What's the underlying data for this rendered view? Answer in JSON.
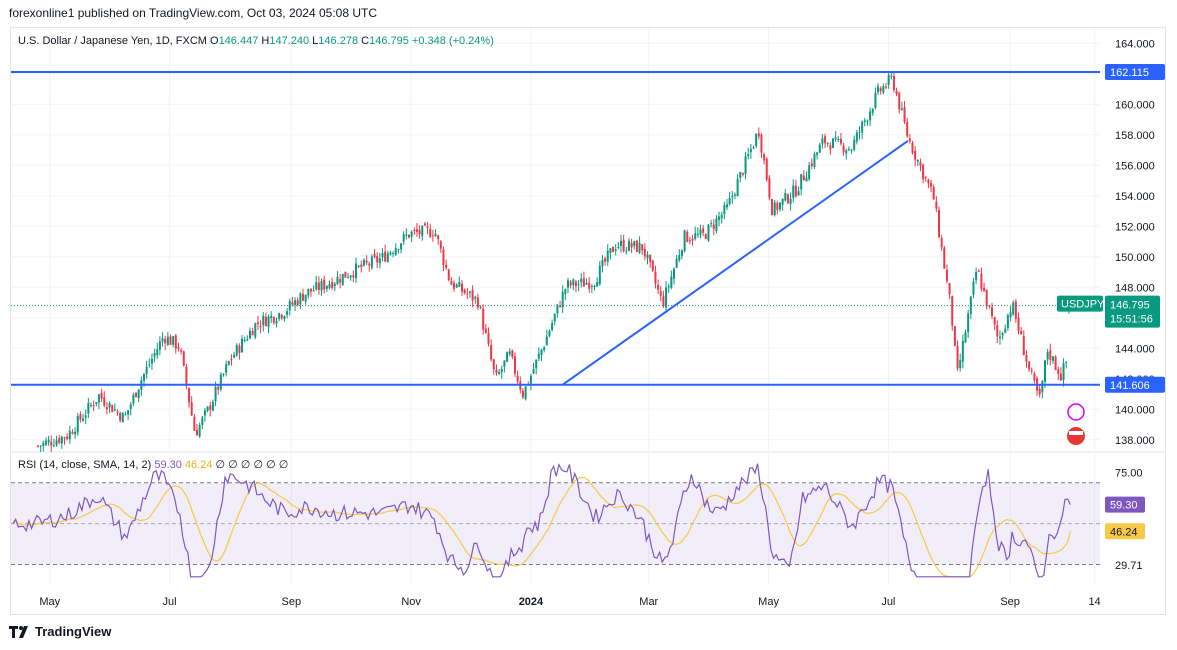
{
  "header": {
    "published": "forexonline1 published on TradingView.com, Oct 03, 2024 05:08 UTC"
  },
  "legend": {
    "symbol": "U.S. Dollar / Japanese Yen, 1D, FXCM",
    "o_label": "O",
    "o_value": "146.447",
    "h_label": "H",
    "h_value": "147.240",
    "l_label": "L",
    "l_value": "146.278",
    "c_label": "C",
    "c_value": "146.795",
    "change": "+0.348 (+0.24%)"
  },
  "rsi_legend": {
    "label": "RSI (14, close, SMA, 14, 2)",
    "rsi_value": "59.30",
    "sma_value": "46.24",
    "empty_marks": "∅ ∅ ∅ ∅ ∅ ∅"
  },
  "price_tag": {
    "symbol": "USDJPY",
    "price": "146.795",
    "countdown": "15:51:56"
  },
  "levels": {
    "resistance": "162.115",
    "support": "141.606"
  },
  "rsi_tags": {
    "rsi": "59.30",
    "sma": "46.24"
  },
  "footer": {
    "brand": "TradingView"
  },
  "colors": {
    "up": "#089981",
    "down": "#f23645",
    "level_line": "#2962ff",
    "rsi_line": "#7e57c2",
    "rsi_sma": "#f7c948"
  },
  "chart_data": [
    {
      "type": "candlestick",
      "title": "U.S. Dollar / Japanese Yen, 1D, FXCM",
      "x_tick_labels": [
        "May",
        "Jul",
        "Sep",
        "Nov",
        "2024",
        "Mar",
        "May",
        "Jul",
        "Sep",
        "14"
      ],
      "y_tick_labels": [
        "164.000",
        "162.000",
        "160.000",
        "158.000",
        "156.000",
        "154.000",
        "152.000",
        "150.000",
        "148.000",
        "146.000",
        "144.000",
        "142.000",
        "140.000",
        "138.000"
      ],
      "ylim": [
        137.2,
        165.0
      ],
      "key_levels": [
        162.115,
        141.606
      ],
      "last_close": 146.795,
      "trendline": {
        "from": [
          "2024-01-17",
          141.6
        ],
        "to": [
          "2024-07-11",
          157.6
        ]
      },
      "approx_close_path": [
        [
          "2023-04-25",
          137.6
        ],
        [
          "2023-05-10",
          138.3
        ],
        [
          "2023-05-26",
          140.9
        ],
        [
          "2023-06-08",
          139.4
        ],
        [
          "2023-06-16",
          141.8
        ],
        [
          "2023-06-28",
          144.8
        ],
        [
          "2023-07-06",
          144.1
        ],
        [
          "2023-07-14",
          138.4
        ],
        [
          "2023-07-20",
          139.8
        ],
        [
          "2023-08-01",
          143.3
        ],
        [
          "2023-08-14",
          145.6
        ],
        [
          "2023-08-28",
          146.4
        ],
        [
          "2023-09-08",
          147.6
        ],
        [
          "2023-09-22",
          148.4
        ],
        [
          "2023-10-03",
          149.1
        ],
        [
          "2023-10-17",
          149.9
        ],
        [
          "2023-10-31",
          151.5
        ],
        [
          "2023-11-13",
          151.7
        ],
        [
          "2023-11-21",
          148.3
        ],
        [
          "2023-12-05",
          147.1
        ],
        [
          "2023-12-14",
          141.9
        ],
        [
          "2023-12-21",
          143.6
        ],
        [
          "2023-12-28",
          141.0
        ],
        [
          "2024-01-08",
          144.4
        ],
        [
          "2024-01-19",
          148.1
        ],
        [
          "2024-02-02",
          148.4
        ],
        [
          "2024-02-13",
          150.8
        ],
        [
          "2024-02-27",
          150.6
        ],
        [
          "2024-03-08",
          146.9
        ],
        [
          "2024-03-19",
          151.3
        ],
        [
          "2024-03-29",
          151.4
        ],
        [
          "2024-04-10",
          153.2
        ],
        [
          "2024-04-26",
          158.3
        ],
        [
          "2024-05-03",
          153.0
        ],
        [
          "2024-05-15",
          154.4
        ],
        [
          "2024-05-29",
          157.6
        ],
        [
          "2024-06-12",
          157.1
        ],
        [
          "2024-06-26",
          160.8
        ],
        [
          "2024-07-03",
          161.7
        ],
        [
          "2024-07-11",
          157.8
        ],
        [
          "2024-07-24",
          153.9
        ],
        [
          "2024-08-02",
          146.5
        ],
        [
          "2024-08-05",
          142.1
        ],
        [
          "2024-08-15",
          149.2
        ],
        [
          "2024-08-26",
          144.5
        ],
        [
          "2024-09-02",
          146.9
        ],
        [
          "2024-09-11",
          142.4
        ],
        [
          "2024-09-16",
          140.6
        ],
        [
          "2024-09-20",
          143.9
        ],
        [
          "2024-09-27",
          142.2
        ],
        [
          "2024-10-01",
          143.6
        ],
        [
          "2024-10-02",
          146.8
        ]
      ]
    },
    {
      "type": "line",
      "title": "RSI (14, close, SMA, 14, 2)",
      "y_tick_labels": [
        "75.00",
        "45.96",
        "29.71"
      ],
      "ylim": [
        20,
        85
      ],
      "band": [
        30,
        70
      ],
      "series": [
        {
          "name": "RSI",
          "last": 59.3
        },
        {
          "name": "SMA",
          "last": 46.24
        }
      ]
    }
  ]
}
